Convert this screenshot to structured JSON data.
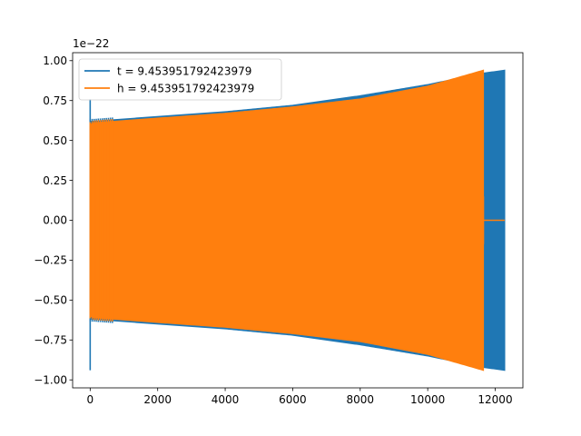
{
  "chart_data": {
    "type": "line",
    "title": "",
    "xlabel": "",
    "ylabel": "",
    "xlim": [
      -520,
      12820
    ],
    "ylim": [
      -1.05,
      1.05
    ],
    "y_offset_label": "1e−22",
    "x_ticks": [
      0,
      2000,
      4000,
      6000,
      8000,
      10000,
      12000
    ],
    "x_tick_labels": [
      "0",
      "2000",
      "4000",
      "6000",
      "8000",
      "10000",
      "12000"
    ],
    "y_ticks": [
      -1.0,
      -0.75,
      -0.5,
      -0.25,
      0.0,
      0.25,
      0.5,
      0.75,
      1.0
    ],
    "y_tick_labels": [
      "−1.00",
      "−0.75",
      "−0.50",
      "−0.25",
      "0.00",
      "0.25",
      "0.50",
      "0.75",
      "1.00"
    ],
    "grid": false,
    "legend_position": "top-left",
    "series": [
      {
        "name": "t = 9.453951792423979",
        "color": "#1f77b4",
        "envelope": {
          "x": [
            0,
            100,
            2000,
            4000,
            6000,
            8000,
            10000,
            11600,
            12280
          ],
          "upper": [
            0.62,
            0.62,
            0.65,
            0.68,
            0.72,
            0.78,
            0.85,
            0.92,
            0.94
          ],
          "lower": [
            -0.62,
            -0.62,
            -0.65,
            -0.68,
            -0.72,
            -0.78,
            -0.85,
            -0.92,
            -0.94
          ]
        },
        "spikes": [
          {
            "x": 0,
            "y_min": -0.94,
            "y_max": 0.76
          }
        ],
        "tail_value": 0.0
      },
      {
        "name": "h = 9.453951792423979",
        "color": "#ff7f0e",
        "envelope": {
          "x": [
            0,
            100,
            2000,
            4000,
            6000,
            8000,
            10000,
            11650
          ],
          "upper": [
            0.6,
            0.61,
            0.64,
            0.67,
            0.71,
            0.76,
            0.84,
            0.94
          ],
          "lower": [
            -0.6,
            -0.61,
            -0.64,
            -0.67,
            -0.71,
            -0.76,
            -0.84,
            -0.94
          ]
        },
        "tail": {
          "x": [
            11650,
            12280
          ],
          "y": 0.0
        }
      }
    ]
  }
}
